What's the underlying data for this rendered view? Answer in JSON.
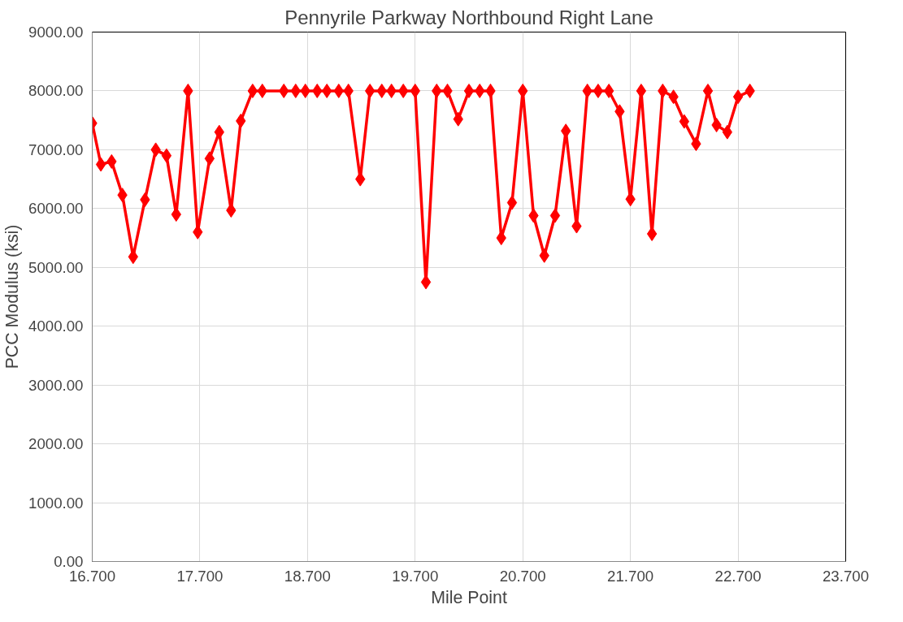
{
  "chart_data": {
    "type": "line",
    "title": "Pennyrile Parkway Northbound Right Lane",
    "xlabel": "Mile Point",
    "ylabel": "PCC Modulus (ksi)",
    "x": [
      16.7,
      16.78,
      16.88,
      16.98,
      17.08,
      17.19,
      17.29,
      17.39,
      17.48,
      17.59,
      17.68,
      17.79,
      17.88,
      17.99,
      18.08,
      18.19,
      18.28,
      18.48,
      18.59,
      18.68,
      18.79,
      18.88,
      18.99,
      19.08,
      19.19,
      19.28,
      19.39,
      19.48,
      19.59,
      19.7,
      19.8,
      19.9,
      20.0,
      20.1,
      20.2,
      20.3,
      20.4,
      20.5,
      20.6,
      20.7,
      20.8,
      20.9,
      21.0,
      21.1,
      21.2,
      21.3,
      21.4,
      21.5,
      21.6,
      21.7,
      21.8,
      21.9,
      22.0,
      22.1,
      22.2,
      22.31,
      22.42,
      22.5,
      22.6,
      22.7,
      22.81
    ],
    "series": [
      {
        "color": "#ff0000",
        "values": [
          7450,
          6750,
          6800,
          6230,
          5180,
          6150,
          7000,
          6900,
          5900,
          8000,
          5600,
          6850,
          7300,
          5970,
          7490,
          8000,
          8000,
          8000,
          8000,
          8000,
          8000,
          8000,
          8000,
          8000,
          6500,
          8000,
          8000,
          8000,
          8000,
          8000,
          4750,
          8000,
          8000,
          7520,
          8000,
          8000,
          8000,
          5500,
          6100,
          8000,
          5880,
          5200,
          5880,
          7320,
          5700,
          8000,
          8000,
          8000,
          7650,
          6160,
          8000,
          5570,
          8000,
          7900,
          7480,
          7100,
          8000,
          7420,
          7300,
          7900,
          8000
        ]
      }
    ],
    "xlim": [
      16.7,
      23.7
    ],
    "ylim": [
      0,
      9000
    ],
    "xticks": [
      {
        "value": 16.7,
        "label": "16.700"
      },
      {
        "value": 17.7,
        "label": "17.700"
      },
      {
        "value": 18.7,
        "label": "18.700"
      },
      {
        "value": 19.7,
        "label": "19.700"
      },
      {
        "value": 20.7,
        "label": "20.700"
      },
      {
        "value": 21.7,
        "label": "21.700"
      },
      {
        "value": 22.7,
        "label": "22.700"
      },
      {
        "value": 23.7,
        "label": "23.700"
      }
    ],
    "yticks": [
      {
        "value": 0,
        "label": "0.00"
      },
      {
        "value": 1000,
        "label": "1000.00"
      },
      {
        "value": 2000,
        "label": "2000.00"
      },
      {
        "value": 3000,
        "label": "3000.00"
      },
      {
        "value": 4000,
        "label": "4000.00"
      },
      {
        "value": 5000,
        "label": "5000.00"
      },
      {
        "value": 6000,
        "label": "6000.00"
      },
      {
        "value": 7000,
        "label": "7000.00"
      },
      {
        "value": 8000,
        "label": "8000.00"
      },
      {
        "value": 9000,
        "label": "9000.00"
      }
    ],
    "grid": true,
    "marker": "diamond",
    "line_style": "solid"
  }
}
